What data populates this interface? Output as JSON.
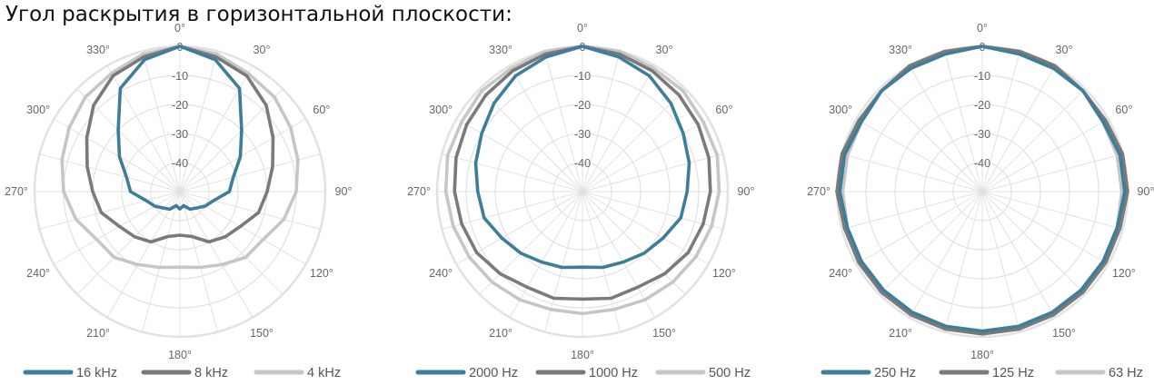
{
  "heading": "Угол раскрытия в горизонтальной плоскости:",
  "colors": {
    "grid": "#e2e2e2",
    "series": [
      "#3d7f9a",
      "#7a7a7a",
      "#c6c6c6"
    ]
  },
  "chart_data": [
    {
      "type": "polar-line",
      "r_ticks": [
        "0",
        "-10",
        "-20",
        "-30",
        "-40"
      ],
      "r_range": [
        -50,
        0
      ],
      "theta_ticks": [
        "0°",
        "30°",
        "60°",
        "90°",
        "120°",
        "150°",
        "180°",
        "210°",
        "240°",
        "270°",
        "300°",
        "330°"
      ],
      "angles_deg": [
        0,
        15,
        30,
        45,
        60,
        75,
        90,
        105,
        120,
        135,
        150,
        165,
        180,
        195,
        210,
        225,
        240,
        255,
        270,
        285,
        300,
        315,
        330,
        345
      ],
      "series": [
        {
          "name": "16 kHz",
          "values": [
            0,
            -3,
            -9,
            -20,
            -26,
            -31,
            -33,
            -38,
            -40,
            -42,
            -43,
            -45,
            -44,
            -45,
            -43,
            -42,
            -40,
            -38,
            -33,
            -31,
            -26,
            -20,
            -9,
            -3
          ]
        },
        {
          "name": "8 kHz",
          "values": [
            0,
            -2,
            -4,
            -8,
            -13,
            -17,
            -20,
            -22,
            -26,
            -28,
            -30,
            -34,
            -35,
            -34,
            -30,
            -28,
            -26,
            -22,
            -20,
            -17,
            -13,
            -8,
            -4,
            -2
          ]
        },
        {
          "name": "4 kHz",
          "values": [
            0,
            -1,
            -3,
            -4,
            -6,
            -8,
            -10,
            -13,
            -17,
            -18,
            -21,
            -23,
            -24,
            -23,
            -21,
            -18,
            -17,
            -13,
            -10,
            -8,
            -6,
            -4,
            -3,
            -1
          ]
        }
      ]
    },
    {
      "type": "polar-line",
      "r_ticks": [
        "0",
        "-10",
        "-20",
        "-30",
        "-40"
      ],
      "r_range": [
        -50,
        0
      ],
      "theta_ticks": [
        "0°",
        "30°",
        "60°",
        "90°",
        "120°",
        "150°",
        "180°",
        "210°",
        "240°",
        "270°",
        "300°",
        "330°"
      ],
      "angles_deg": [
        0,
        15,
        30,
        45,
        60,
        75,
        90,
        105,
        120,
        135,
        150,
        165,
        180,
        195,
        210,
        225,
        240,
        255,
        270,
        285,
        300,
        315,
        330,
        345
      ],
      "series": [
        {
          "name": "2000 Hz",
          "values": [
            0,
            -2,
            -4,
            -7,
            -10,
            -12,
            -14,
            -15,
            -18,
            -20,
            -22,
            -23,
            -24,
            -23,
            -22,
            -20,
            -18,
            -15,
            -14,
            -12,
            -10,
            -7,
            -4,
            -2
          ]
        },
        {
          "name": "1000 Hz",
          "values": [
            0,
            -1,
            -2,
            -3,
            -4,
            -5,
            -6,
            -7,
            -8,
            -10,
            -12,
            -12,
            -13,
            -12,
            -12,
            -10,
            -8,
            -7,
            -6,
            -5,
            -4,
            -3,
            -2,
            -1
          ]
        },
        {
          "name": "500 Hz",
          "values": [
            0,
            0,
            -1,
            -1,
            -2,
            -2,
            -3,
            -4,
            -5,
            -6,
            -7,
            -8,
            -8,
            -8,
            -7,
            -6,
            -5,
            -4,
            -3,
            -2,
            -2,
            -1,
            -1,
            0
          ]
        }
      ]
    },
    {
      "type": "polar-line",
      "r_ticks": [
        "0",
        "-10",
        "-20",
        "-30",
        "-40"
      ],
      "r_range": [
        -50,
        0
      ],
      "theta_ticks": [
        "0°",
        "30°",
        "60°",
        "90°",
        "120°",
        "150°",
        "180°",
        "210°",
        "240°",
        "270°",
        "300°",
        "330°"
      ],
      "angles_deg": [
        0,
        15,
        30,
        45,
        60,
        75,
        90,
        105,
        120,
        135,
        150,
        165,
        180,
        195,
        210,
        225,
        240,
        255,
        270,
        285,
        300,
        315,
        330,
        345
      ],
      "series": [
        {
          "name": "250 Hz",
          "values": [
            0,
            -1,
            -1,
            -1,
            -2,
            -1,
            -1,
            -2,
            -2,
            -2,
            -2,
            -2,
            -2,
            -2,
            -2,
            -2,
            -2,
            -2,
            -1,
            -1,
            -2,
            -1,
            -1,
            -1
          ]
        },
        {
          "name": "125 Hz",
          "values": [
            0,
            0,
            0,
            -1,
            -1,
            0,
            0,
            -1,
            -1,
            -1,
            -1,
            -1,
            -1,
            -1,
            -1,
            -1,
            -1,
            -1,
            0,
            0,
            -1,
            -1,
            0,
            0
          ]
        },
        {
          "name": "63 Hz",
          "values": [
            0,
            -1,
            -1,
            -1,
            -2,
            -2,
            -2,
            -2,
            -2,
            -2,
            -2,
            -2,
            -2,
            -2,
            -2,
            -2,
            -2,
            -2,
            -2,
            -2,
            -2,
            -1,
            -1,
            -1
          ]
        }
      ]
    }
  ]
}
